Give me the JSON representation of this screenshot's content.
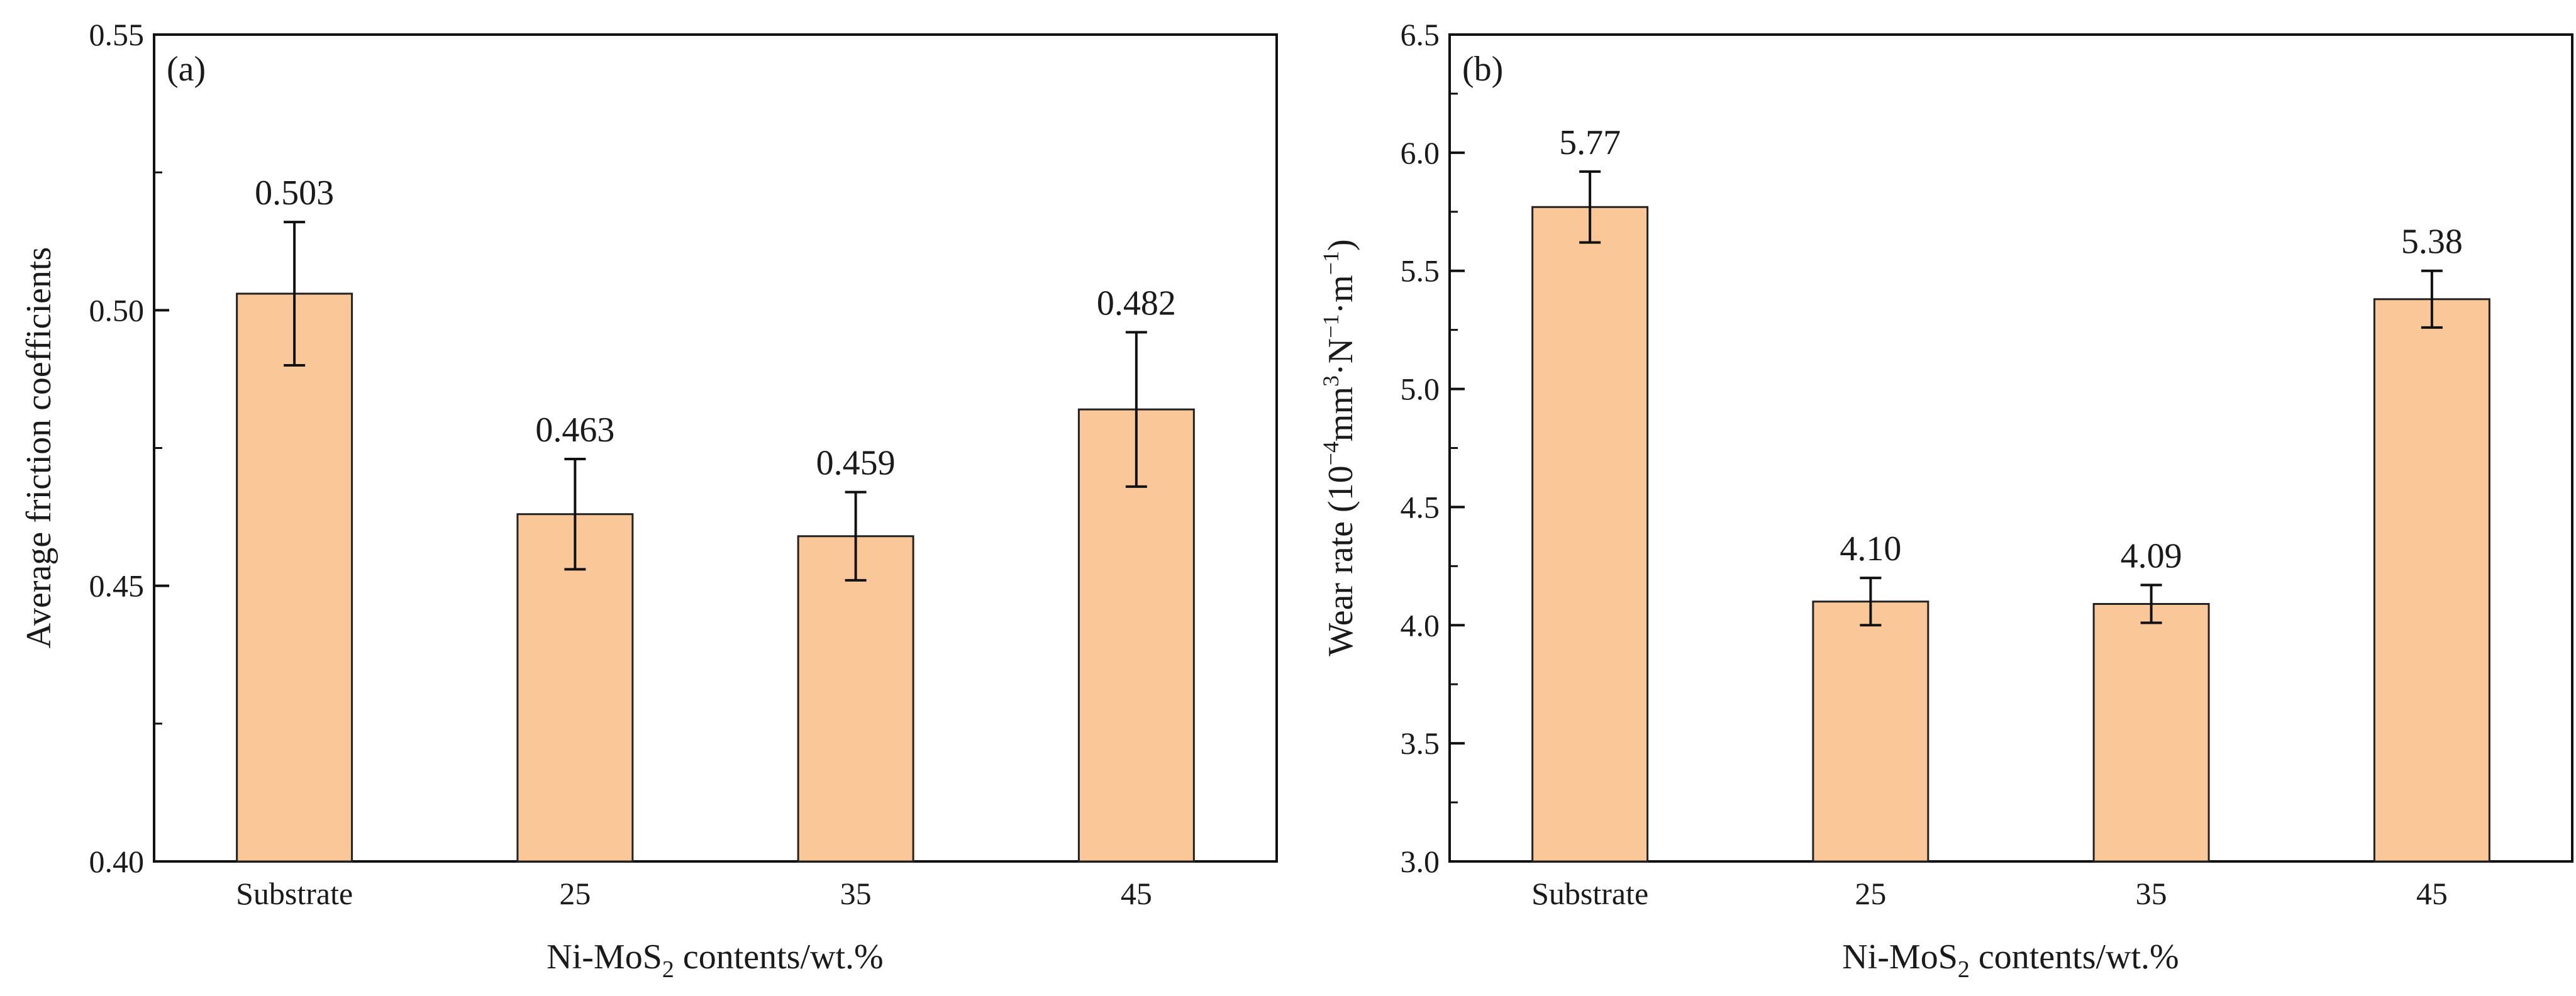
{
  "colors": {
    "bar_fill": "#fac898",
    "bar_stroke": "#222222",
    "axis": "#111111",
    "text": "#1a1a1a"
  },
  "chart_data": [
    {
      "type": "bar",
      "panel_label": "(a)",
      "categories": [
        "Substrate",
        "25",
        "35",
        "45"
      ],
      "values": [
        0.503,
        0.463,
        0.459,
        0.482
      ],
      "errors": [
        0.013,
        0.01,
        0.008,
        0.014
      ],
      "value_labels": [
        "0.503",
        "0.463",
        "0.459",
        "0.482"
      ],
      "ylim": [
        0.4,
        0.55
      ],
      "yticks": [
        0.4,
        0.45,
        0.5,
        0.55
      ],
      "ytick_labels": [
        "0.40",
        "0.45",
        "0.50",
        "0.55"
      ],
      "ylabel": "Average friction coefficients",
      "xlabel": {
        "prefix": "Ni-MoS",
        "subscript": "2",
        "suffix": " contents/wt.%"
      },
      "grid": false
    },
    {
      "type": "bar",
      "panel_label": "(b)",
      "categories": [
        "Substrate",
        "25",
        "35",
        "45"
      ],
      "values": [
        5.77,
        4.1,
        4.09,
        5.38
      ],
      "errors": [
        0.15,
        0.1,
        0.08,
        0.12
      ],
      "value_labels": [
        "5.77",
        "4.10",
        "4.09",
        "5.38"
      ],
      "ylim": [
        3.0,
        6.5
      ],
      "yticks": [
        3.0,
        3.5,
        4.0,
        4.5,
        5.0,
        5.5,
        6.0,
        6.5
      ],
      "ytick_labels": [
        "3.0",
        "3.5",
        "4.0",
        "4.5",
        "5.0",
        "5.5",
        "6.0",
        "6.5"
      ],
      "ylabel": {
        "prefix": "Wear rate (10",
        "exp1": "−4",
        "mid1": "mm",
        "exp2": "3",
        "mid2": "·N",
        "exp3": "−1",
        "mid3": "·m",
        "exp4": "−1",
        "suffix": ")"
      },
      "xlabel": {
        "prefix": "Ni-MoS",
        "subscript": "2",
        "suffix": " contents/wt.%"
      },
      "grid": false
    }
  ]
}
